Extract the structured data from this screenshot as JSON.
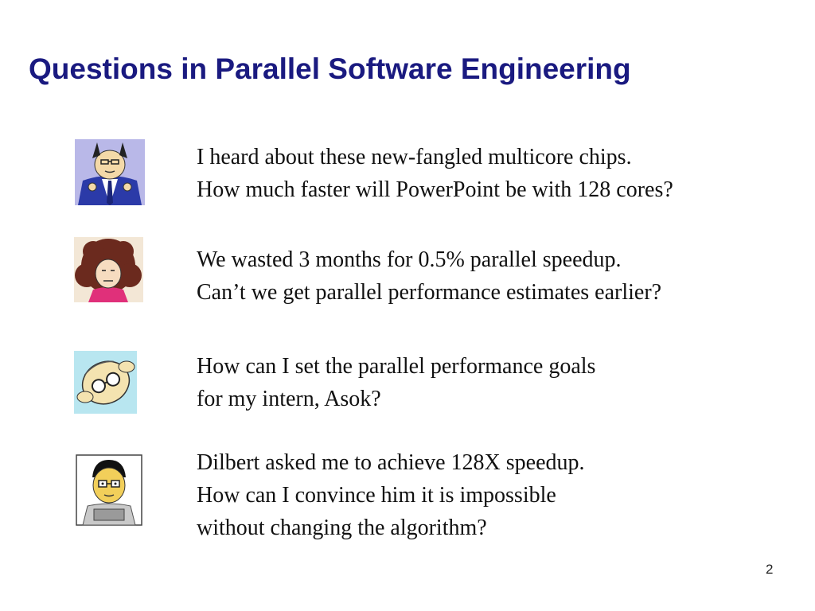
{
  "title": "Questions in Parallel Software Engineering",
  "rows": [
    {
      "avatar_icon": "boss-icon",
      "lines": [
        "I heard about these new-fangled multicore chips.",
        "How much faster will PowerPoint be with 128 cores?"
      ]
    },
    {
      "avatar_icon": "alice-icon",
      "lines": [
        "We wasted 3 months for 0.5% parallel speedup.",
        "Can’t we get parallel performance estimates earlier?"
      ]
    },
    {
      "avatar_icon": "dilbert-icon",
      "lines": [
        "How can I set the parallel performance goals",
        "for my intern, Asok?"
      ]
    },
    {
      "avatar_icon": "asok-icon",
      "lines": [
        "Dilbert asked me to achieve 128X speedup.",
        "How can I convince him it is impossible",
        "without changing the algorithm?"
      ]
    }
  ],
  "page_number": "2",
  "colors": {
    "title": "#1a1a80",
    "text": "#111111",
    "background": "#ffffff"
  }
}
